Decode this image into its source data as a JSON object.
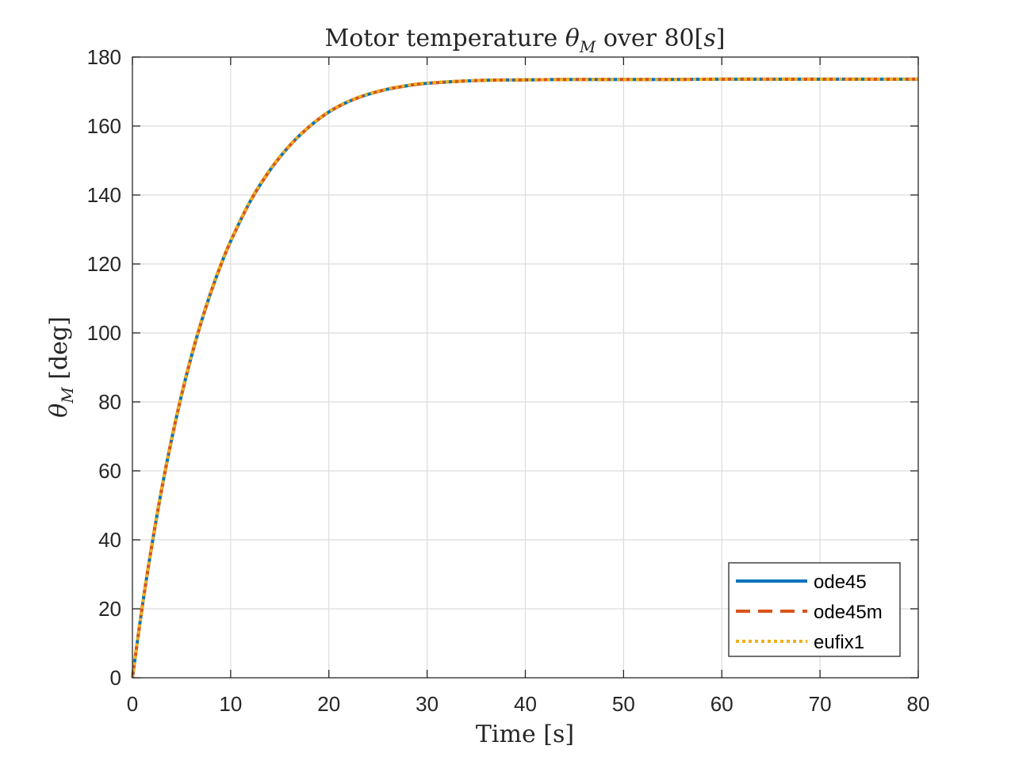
{
  "chart_data": {
    "type": "line",
    "title": {
      "prefix": "Motor temperature ",
      "symbol": "θ",
      "symbol_sub": "M",
      "middle": " over 80[",
      "unit": "s",
      "suffix": "]"
    },
    "xlabel": "Time [s]",
    "ylabel": {
      "symbol": "θ",
      "symbol_sub": "M",
      "unit": "[deg]"
    },
    "xlim": [
      0,
      80
    ],
    "ylim": [
      0,
      180
    ],
    "xticks": [
      0,
      10,
      20,
      30,
      40,
      50,
      60,
      70,
      80
    ],
    "yticks": [
      0,
      20,
      40,
      60,
      80,
      100,
      120,
      140,
      160,
      180
    ],
    "grid": true,
    "legend_position": "bottom-right",
    "x": [
      0,
      1,
      2,
      3,
      4,
      5,
      6,
      7,
      8,
      9,
      10,
      12,
      14,
      16,
      18,
      20,
      22,
      24,
      26,
      28,
      30,
      35,
      40,
      45,
      50,
      55,
      60,
      65,
      70,
      75,
      80
    ],
    "series": [
      {
        "name": "ode45",
        "color": "#0072BD",
        "style": "solid",
        "values": [
          0,
          20.6,
          38.8,
          55.0,
          69.3,
          82.0,
          93.2,
          103.1,
          111.9,
          119.7,
          126.6,
          138.2,
          147.2,
          154.3,
          159.8,
          164.1,
          167.1,
          169.2,
          170.7,
          171.7,
          172.4,
          173.2,
          173.4,
          173.5,
          173.5,
          173.5,
          173.6,
          173.6,
          173.6,
          173.6,
          173.6
        ]
      },
      {
        "name": "ode45m",
        "color": "#D95319",
        "style": "dashed",
        "values": [
          0,
          20.6,
          38.8,
          55.0,
          69.3,
          82.0,
          93.2,
          103.1,
          111.9,
          119.7,
          126.6,
          138.2,
          147.2,
          154.3,
          159.8,
          164.1,
          167.1,
          169.2,
          170.7,
          171.7,
          172.4,
          173.2,
          173.4,
          173.5,
          173.5,
          173.5,
          173.6,
          173.6,
          173.6,
          173.6,
          173.6
        ]
      },
      {
        "name": "eufix1",
        "color": "#EDB120",
        "style": "dotted",
        "values": [
          0,
          20.8,
          39.1,
          55.3,
          69.6,
          82.3,
          93.5,
          103.4,
          112.2,
          119.9,
          126.8,
          138.4,
          147.4,
          154.4,
          159.9,
          164.2,
          167.2,
          169.3,
          170.8,
          171.8,
          172.5,
          173.2,
          173.4,
          173.5,
          173.5,
          173.5,
          173.6,
          173.6,
          173.6,
          173.6,
          173.6
        ]
      }
    ]
  }
}
